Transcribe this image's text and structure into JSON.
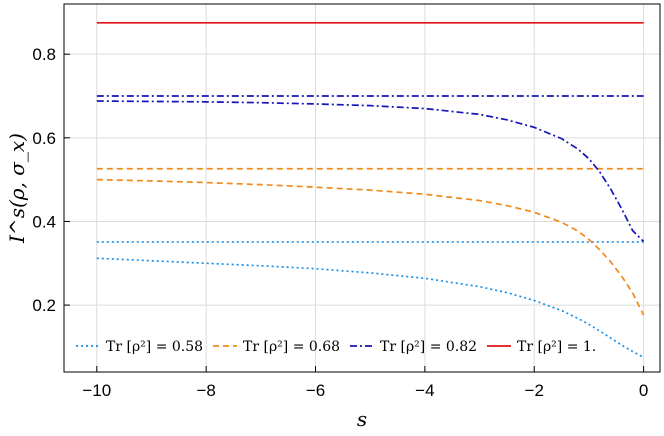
{
  "chart_data": {
    "type": "line",
    "title": "",
    "xlabel": "s",
    "ylabel": "I^s(ρ, σ_x)",
    "xlim": [
      -10.6,
      0.3
    ],
    "ylim": [
      0.04,
      0.92
    ],
    "xticks": [
      -10,
      -8,
      -6,
      -4,
      -2,
      0
    ],
    "yticks": [
      0.2,
      0.4,
      0.6,
      0.8
    ],
    "xtick_labels": [
      "−10",
      "−8",
      "−6",
      "−4",
      "−2",
      "0"
    ],
    "ytick_labels": [
      "0.2",
      "0.4",
      "0.6",
      "0.8"
    ],
    "grid": true,
    "legend_position": "bottom",
    "x": [
      -10,
      -9,
      -8,
      -7,
      -6,
      -5,
      -4,
      -3,
      -2.5,
      -2,
      -1.5,
      -1.2,
      -1,
      -0.8,
      -0.6,
      -0.4,
      -0.2,
      0
    ],
    "series": [
      {
        "name": "Tr [ρ²] = 0.58",
        "legend_label": "Tr [ρ²] = 0.58",
        "color": "#1a8fe8",
        "dash": "dotted",
        "constant": 0.351,
        "values": [
          0.312,
          0.306,
          0.3,
          0.294,
          0.287,
          0.277,
          0.264,
          0.244,
          0.23,
          0.211,
          0.187,
          0.168,
          0.154,
          0.138,
          0.121,
          0.104,
          0.089,
          0.075
        ]
      },
      {
        "name": "Tr [ρ²] = 0.68",
        "legend_label": "Tr [ρ²] = 0.68",
        "color": "#f08a1c",
        "dash": "dashed",
        "constant": 0.526,
        "values": [
          0.5,
          0.497,
          0.493,
          0.488,
          0.482,
          0.475,
          0.465,
          0.45,
          0.438,
          0.422,
          0.398,
          0.377,
          0.357,
          0.332,
          0.303,
          0.269,
          0.229,
          0.176
        ]
      },
      {
        "name": "Tr [ρ²] = 0.82",
        "legend_label": "Tr [ρ²] = 0.82",
        "color": "#1414b8",
        "dash": "dashdot",
        "constant": 0.7,
        "values": [
          0.688,
          0.687,
          0.686,
          0.684,
          0.681,
          0.677,
          0.67,
          0.656,
          0.643,
          0.625,
          0.598,
          0.573,
          0.55,
          0.518,
          0.477,
          0.43,
          0.378,
          0.352
        ]
      },
      {
        "name": "Tr [ρ²] = 1.",
        "legend_label": "Tr [ρ²] = 1.",
        "color": "#e01414",
        "dash": "solid",
        "constant": 0.875,
        "values": null
      }
    ]
  }
}
